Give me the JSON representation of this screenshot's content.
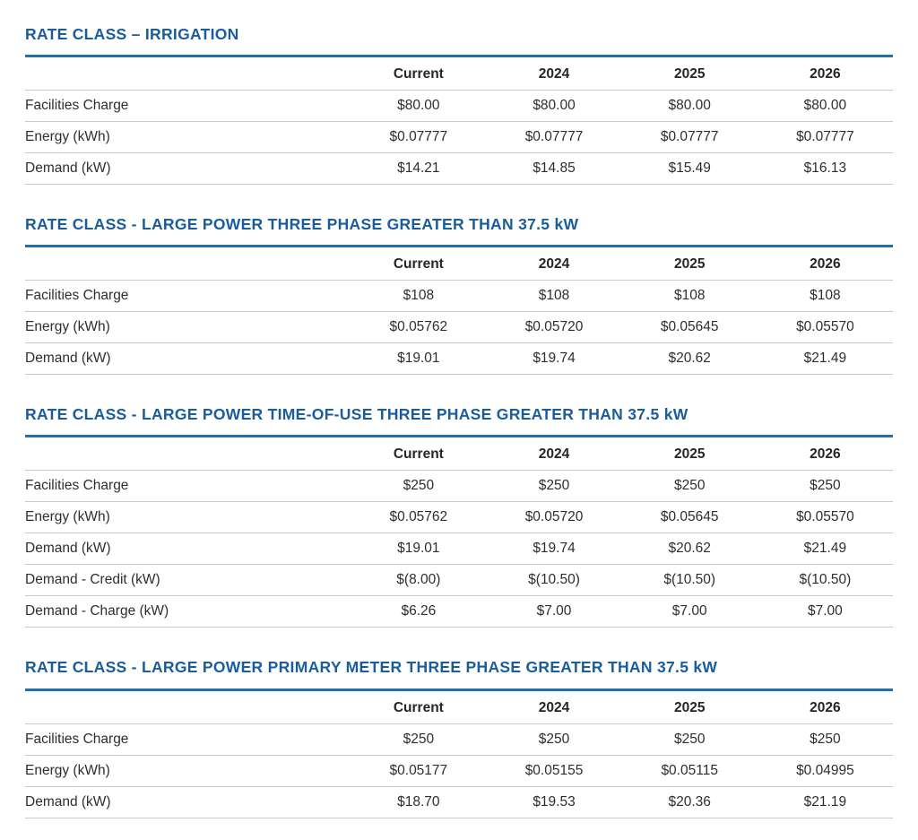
{
  "colors": {
    "heading_blue": "#1a5c9c",
    "table_rule_blue": "#2470ad",
    "row_divider_gray": "#c9c9c9",
    "body_text": "#2e2e2e"
  },
  "columns": [
    "Current",
    "2024",
    "2025",
    "2026"
  ],
  "sections": [
    {
      "title": "RATE CLASS – IRRIGATION",
      "rows": [
        {
          "label": "Facilities Charge",
          "values": [
            "$80.00",
            "$80.00",
            "$80.00",
            "$80.00"
          ]
        },
        {
          "label": "Energy (kWh)",
          "values": [
            "$0.07777",
            "$0.07777",
            "$0.07777",
            "$0.07777"
          ]
        },
        {
          "label": "Demand (kW)",
          "values": [
            "$14.21",
            "$14.85",
            "$15.49",
            "$16.13"
          ]
        }
      ]
    },
    {
      "title": "RATE CLASS - LARGE POWER THREE PHASE GREATER THAN 37.5 kW",
      "rows": [
        {
          "label": "Facilities Charge",
          "values": [
            "$108",
            "$108",
            "$108",
            "$108"
          ]
        },
        {
          "label": "Energy (kWh)",
          "values": [
            "$0.05762",
            "$0.05720",
            "$0.05645",
            "$0.05570"
          ]
        },
        {
          "label": "Demand (kW)",
          "values": [
            "$19.01",
            "$19.74",
            "$20.62",
            "$21.49"
          ]
        }
      ]
    },
    {
      "title": "RATE CLASS - LARGE POWER TIME-OF-USE THREE PHASE GREATER THAN 37.5 kW",
      "rows": [
        {
          "label": "Facilities Charge",
          "values": [
            "$250",
            "$250",
            "$250",
            "$250"
          ]
        },
        {
          "label": "Energy (kWh)",
          "values": [
            "$0.05762",
            "$0.05720",
            "$0.05645",
            "$0.05570"
          ]
        },
        {
          "label": "Demand (kW)",
          "values": [
            "$19.01",
            "$19.74",
            "$20.62",
            "$21.49"
          ]
        },
        {
          "label": "Demand - Credit (kW)",
          "values": [
            "$(8.00)",
            "$(10.50)",
            "$(10.50)",
            "$(10.50)"
          ]
        },
        {
          "label": "Demand - Charge (kW)",
          "values": [
            "$6.26",
            "$7.00",
            "$7.00",
            "$7.00"
          ]
        }
      ]
    },
    {
      "title": "RATE CLASS - LARGE POWER PRIMARY METER THREE PHASE GREATER THAN 37.5 kW",
      "rows": [
        {
          "label": "Facilities Charge",
          "values": [
            "$250",
            "$250",
            "$250",
            "$250"
          ]
        },
        {
          "label": "Energy (kWh)",
          "values": [
            "$0.05177",
            "$0.05155",
            "$0.05115",
            "$0.04995"
          ]
        },
        {
          "label": "Demand (kW)",
          "values": [
            "$18.70",
            "$19.53",
            "$20.36",
            "$21.19"
          ]
        }
      ]
    }
  ]
}
